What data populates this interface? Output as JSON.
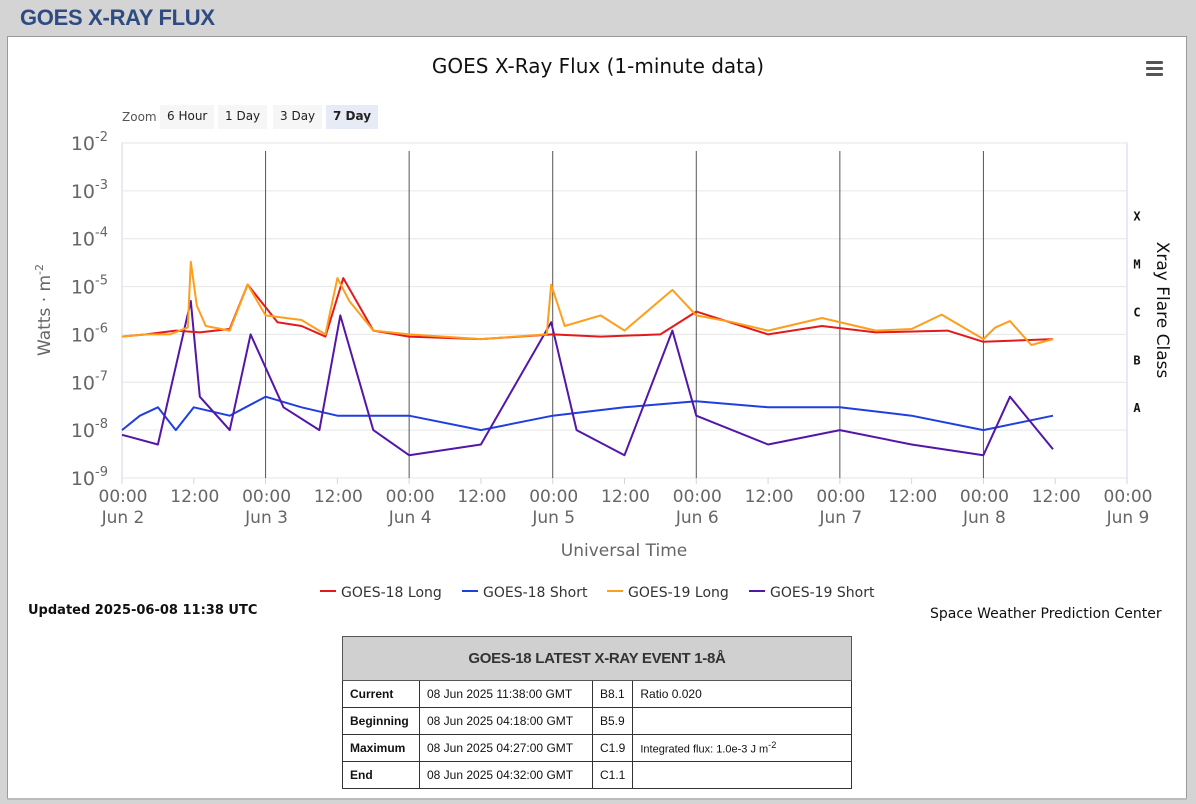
{
  "page_title": "GOES X-RAY FLUX",
  "toolbar": {
    "zoom_label": "Zoom",
    "zoom_options": [
      "6 Hour",
      "1 Day",
      "3 Day",
      "7 Day"
    ],
    "zoom_selected": "7 Day",
    "menu_icon": "hamburger-menu-icon"
  },
  "updated_text": "Updated 2025-06-08 11:38 UTC",
  "credit_text": "Space Weather Prediction Center",
  "chart_data": {
    "type": "line",
    "title": "GOES X-Ray Flux (1-minute data)",
    "xlabel": "Universal Time",
    "ylabel": "Watts · m",
    "ylabel_superscript": "-2",
    "y2label": "Xray Flare Class",
    "yscale": "log",
    "ylim": [
      "1e-9",
      "1e-2"
    ],
    "y_ticks": [
      {
        "base": "10",
        "exp": "-2"
      },
      {
        "base": "10",
        "exp": "-3"
      },
      {
        "base": "10",
        "exp": "-4"
      },
      {
        "base": "10",
        "exp": "-5"
      },
      {
        "base": "10",
        "exp": "-6"
      },
      {
        "base": "10",
        "exp": "-7"
      },
      {
        "base": "10",
        "exp": "-8"
      },
      {
        "base": "10",
        "exp": "-9"
      }
    ],
    "flare_classes": [
      {
        "label": "X",
        "level": "1e-4"
      },
      {
        "label": "M",
        "level": "1e-5"
      },
      {
        "label": "C",
        "level": "1e-6"
      },
      {
        "label": "B",
        "level": "1e-7"
      },
      {
        "label": "A",
        "level": "1e-8"
      }
    ],
    "xlim": [
      "2025-06-02 00:00",
      "2025-06-09 00:00"
    ],
    "x_ticks": [
      {
        "time": "00:00",
        "date": "Jun 2"
      },
      {
        "time": "12:00",
        "date": ""
      },
      {
        "time": "00:00",
        "date": "Jun 3"
      },
      {
        "time": "12:00",
        "date": ""
      },
      {
        "time": "00:00",
        "date": "Jun 4"
      },
      {
        "time": "12:00",
        "date": ""
      },
      {
        "time": "00:00",
        "date": "Jun 5"
      },
      {
        "time": "12:00",
        "date": ""
      },
      {
        "time": "00:00",
        "date": "Jun 6"
      },
      {
        "time": "12:00",
        "date": ""
      },
      {
        "time": "00:00",
        "date": "Jun 7"
      },
      {
        "time": "12:00",
        "date": ""
      },
      {
        "time": "00:00",
        "date": "Jun 8"
      },
      {
        "time": "12:00",
        "date": ""
      },
      {
        "time": "00:00",
        "date": "Jun 9"
      }
    ],
    "grid": true,
    "legend_position": "bottom-center",
    "series": [
      {
        "name": "GOES-18 Long",
        "color": "#e31a1c",
        "points": [
          [
            "2025-06-02 00:00",
            9e-07
          ],
          [
            "2025-06-02 04:00",
            1e-06
          ],
          [
            "2025-06-02 09:00",
            1.2e-06
          ],
          [
            "2025-06-02 13:00",
            1.1e-06
          ],
          [
            "2025-06-02 18:00",
            1.3e-06
          ],
          [
            "2025-06-02 21:00",
            1.1e-05
          ],
          [
            "2025-06-03 02:00",
            1.8e-06
          ],
          [
            "2025-06-03 06:00",
            1.5e-06
          ],
          [
            "2025-06-03 10:00",
            9e-07
          ],
          [
            "2025-06-03 13:00",
            1.5e-05
          ],
          [
            "2025-06-03 18:00",
            1.2e-06
          ],
          [
            "2025-06-04 00:00",
            9e-07
          ],
          [
            "2025-06-04 12:00",
            8e-07
          ],
          [
            "2025-06-05 00:00",
            1e-06
          ],
          [
            "2025-06-05 08:00",
            9e-07
          ],
          [
            "2025-06-05 18:00",
            1e-06
          ],
          [
            "2025-06-06 00:00",
            3e-06
          ],
          [
            "2025-06-06 12:00",
            1e-06
          ],
          [
            "2025-06-06 21:00",
            1.5e-06
          ],
          [
            "2025-06-07 06:00",
            1.1e-06
          ],
          [
            "2025-06-07 18:00",
            1.2e-06
          ],
          [
            "2025-06-08 00:00",
            7e-07
          ],
          [
            "2025-06-08 11:38",
            8e-07
          ]
        ]
      },
      {
        "name": "GOES-18 Short",
        "color": "#1f3fe0",
        "points": [
          [
            "2025-06-02 00:00",
            1e-08
          ],
          [
            "2025-06-02 03:00",
            2e-08
          ],
          [
            "2025-06-02 06:00",
            3e-08
          ],
          [
            "2025-06-02 09:00",
            1e-08
          ],
          [
            "2025-06-02 12:00",
            3e-08
          ],
          [
            "2025-06-02 18:00",
            2e-08
          ],
          [
            "2025-06-03 00:00",
            5e-08
          ],
          [
            "2025-06-03 06:00",
            3e-08
          ],
          [
            "2025-06-03 12:00",
            2e-08
          ],
          [
            "2025-06-04 00:00",
            2e-08
          ],
          [
            "2025-06-04 12:00",
            1e-08
          ],
          [
            "2025-06-05 00:00",
            2e-08
          ],
          [
            "2025-06-05 12:00",
            3e-08
          ],
          [
            "2025-06-06 00:00",
            4e-08
          ],
          [
            "2025-06-06 12:00",
            3e-08
          ],
          [
            "2025-06-07 00:00",
            3e-08
          ],
          [
            "2025-06-07 12:00",
            2e-08
          ],
          [
            "2025-06-08 00:00",
            1e-08
          ],
          [
            "2025-06-08 11:38",
            2e-08
          ]
        ]
      },
      {
        "name": "GOES-19 Long",
        "color": "#ff9e1b",
        "points": [
          [
            "2025-06-02 00:00",
            9e-07
          ],
          [
            "2025-06-02 04:00",
            1e-06
          ],
          [
            "2025-06-02 08:00",
            1e-06
          ],
          [
            "2025-06-02 11:00",
            1.4e-06
          ],
          [
            "2025-06-02 11:30",
            3.3e-05
          ],
          [
            "2025-06-02 12:30",
            4e-06
          ],
          [
            "2025-06-02 14:00",
            1.5e-06
          ],
          [
            "2025-06-02 18:00",
            1.2e-06
          ],
          [
            "2025-06-02 21:00",
            1.1e-05
          ],
          [
            "2025-06-03 00:00",
            2.5e-06
          ],
          [
            "2025-06-03 06:00",
            2e-06
          ],
          [
            "2025-06-03 10:00",
            1e-06
          ],
          [
            "2025-06-03 12:00",
            1.5e-05
          ],
          [
            "2025-06-03 14:00",
            5e-06
          ],
          [
            "2025-06-03 18:00",
            1.2e-06
          ],
          [
            "2025-06-04 00:00",
            1e-06
          ],
          [
            "2025-06-04 12:00",
            8e-07
          ],
          [
            "2025-06-04 23:00",
            1e-06
          ],
          [
            "2025-06-04 23:45",
            1.1e-05
          ],
          [
            "2025-06-05 02:00",
            1.5e-06
          ],
          [
            "2025-06-05 08:00",
            2.5e-06
          ],
          [
            "2025-06-05 12:00",
            1.2e-06
          ],
          [
            "2025-06-05 20:00",
            8.5e-06
          ],
          [
            "2025-06-06 00:00",
            2.5e-06
          ],
          [
            "2025-06-06 06:00",
            1.8e-06
          ],
          [
            "2025-06-06 12:00",
            1.2e-06
          ],
          [
            "2025-06-06 21:00",
            2.2e-06
          ],
          [
            "2025-06-07 06:00",
            1.2e-06
          ],
          [
            "2025-06-07 12:00",
            1.3e-06
          ],
          [
            "2025-06-07 17:00",
            2.6e-06
          ],
          [
            "2025-06-08 00:00",
            8e-07
          ],
          [
            "2025-06-08 02:00",
            1.4e-06
          ],
          [
            "2025-06-08 04:27",
            1.9e-06
          ],
          [
            "2025-06-08 08:00",
            6e-07
          ],
          [
            "2025-06-08 11:38",
            8e-07
          ]
        ]
      },
      {
        "name": "GOES-19 Short",
        "color": "#5416a8",
        "points": [
          [
            "2025-06-02 00:00",
            8e-09
          ],
          [
            "2025-06-02 06:00",
            5e-09
          ],
          [
            "2025-06-02 11:30",
            5e-06
          ],
          [
            "2025-06-02 13:00",
            5e-08
          ],
          [
            "2025-06-02 18:00",
            1e-08
          ],
          [
            "2025-06-02 21:30",
            1e-06
          ],
          [
            "2025-06-03 03:00",
            3e-08
          ],
          [
            "2025-06-03 09:00",
            1e-08
          ],
          [
            "2025-06-03 12:30",
            2.5e-06
          ],
          [
            "2025-06-03 18:00",
            1e-08
          ],
          [
            "2025-06-04 00:00",
            3e-09
          ],
          [
            "2025-06-04 12:00",
            5e-09
          ],
          [
            "2025-06-04 23:45",
            1.8e-06
          ],
          [
            "2025-06-05 04:00",
            1e-08
          ],
          [
            "2025-06-05 12:00",
            3e-09
          ],
          [
            "2025-06-05 20:00",
            1.2e-06
          ],
          [
            "2025-06-06 00:00",
            2e-08
          ],
          [
            "2025-06-06 12:00",
            5e-09
          ],
          [
            "2025-06-07 00:00",
            1e-08
          ],
          [
            "2025-06-07 12:00",
            5e-09
          ],
          [
            "2025-06-08 00:00",
            3e-09
          ],
          [
            "2025-06-08 04:27",
            5e-08
          ],
          [
            "2025-06-08 11:38",
            4e-09
          ]
        ]
      }
    ]
  },
  "event_table": {
    "header": "GOES-18 LATEST X-RAY EVENT 1-8Å",
    "rows": [
      {
        "label": "Current",
        "time": "08 Jun 2025 11:38:00 GMT",
        "class": "B8.1",
        "note": "Ratio 0.020",
        "note_sup": ""
      },
      {
        "label": "Beginning",
        "time": "08 Jun 2025 04:18:00 GMT",
        "class": "B5.9",
        "note": "",
        "note_sup": ""
      },
      {
        "label": "Maximum",
        "time": "08 Jun 2025 04:27:00 GMT",
        "class": "C1.9",
        "note": "Integrated flux: 1.0e-3 J m",
        "note_sup": "-2"
      },
      {
        "label": "End",
        "time": "08 Jun 2025 04:32:00 GMT",
        "class": "C1.1",
        "note": "",
        "note_sup": ""
      }
    ]
  }
}
